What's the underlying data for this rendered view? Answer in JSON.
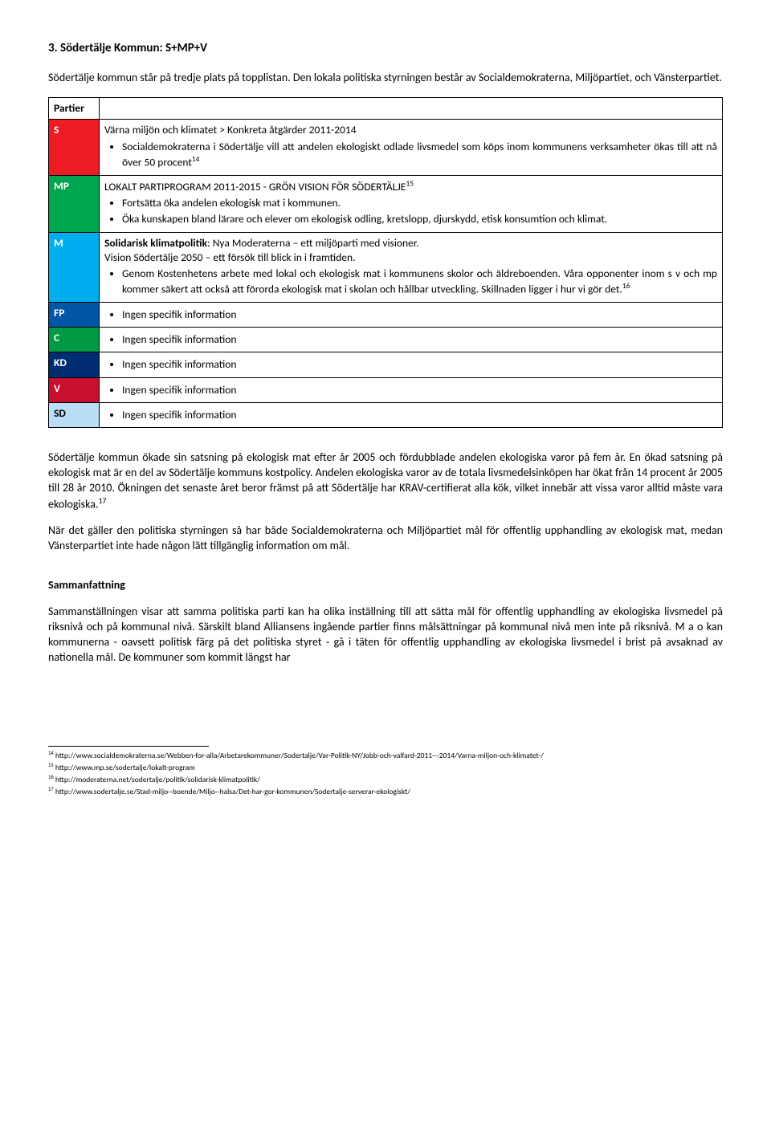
{
  "heading": "3.  Södertälje Kommun: S+MP+V",
  "intro": "Södertälje kommun står på tredje plats på topplistan. Den lokala politiska styrningen består av Socialdemokraterna, Miljöpartiet, och Vänsterpartiet.",
  "table_header": "Partier",
  "parties": {
    "s": {
      "label": "S",
      "bg": "#ed1b24",
      "title": "Värna miljön och klimatet > Konkreta åtgärder 2011-2014",
      "bullet": "Socialdemokraterna i Södertälje vill att andelen ekologiskt odlade livsmedel som köps inom kommunens verksamheter ökas till att nå över 50 procent",
      "fn": "14"
    },
    "mp": {
      "label": "MP",
      "bg": "#00a64f",
      "title": "LOKALT PARTIPROGRAM 2011-2015 - GRÖN VISION FÖR SÖDERTÄLJE",
      "fn": "15",
      "b1": "Fortsätta öka andelen ekologisk mat i kommunen.",
      "b2": "Öka kunskapen bland lärare och elever om ekologisk odling, kretslopp, djurskydd, etisk konsumtion och klimat."
    },
    "m": {
      "label": "M",
      "bg": "#00aeef",
      "line1_bold": "Solidarisk klimatpolitik",
      "line1_rest": ": Nya Moderaterna – ett miljöparti med visioner.",
      "line2": "Vision Södertälje 2050 – ett försök till blick in i framtiden.",
      "b1": "Genom Kostenhetens arbete med lokal och ekologisk mat i kommunens skolor och äldreboenden. Våra opponenter inom s v och mp kommer säkert att också att förorda ekologisk mat i skolan och hållbar utveckling. Skillnaden ligger i hur vi gör det.",
      "fn": "16"
    },
    "fp": {
      "label": "FP",
      "bg": "#0055a5",
      "text": "Ingen specifik information"
    },
    "c": {
      "label": "C",
      "bg": "#009a44",
      "text": "Ingen specifik information"
    },
    "kd": {
      "label": "KD",
      "bg": "#002d72",
      "text": "Ingen specifik information"
    },
    "v": {
      "label": "V",
      "bg": "#c8102e",
      "text": "Ingen specifik information"
    },
    "sd": {
      "label": "SD",
      "bg": "#bbdef7",
      "fg": "#000",
      "text": "Ingen specifik information"
    }
  },
  "para1": "Södertälje kommun ökade sin satsning på ekologisk mat efter år 2005 och fördubblade andelen ekologiska varor på fem år. En ökad satsning på ekologisk mat är en del av Södertälje kommuns kostpolicy. Andelen ekologiska varor av de totala livsmedelsinköpen har ökat från 14 procent år 2005 till 28 år 2010. Ökningen det senaste året beror främst på att Södertälje har KRAV-certifierat alla kök, vilket innebär att vissa varor alltid måste vara ekologiska.",
  "para1_fn": "17",
  "para2": "När det gäller den politiska styrningen så har både Socialdemokraterna och Miljöpartiet mål för offentlig upphandling av ekologisk mat, medan Vänsterpartiet inte hade någon lätt tillgänglig information om mål.",
  "summary_heading": "Sammanfattning",
  "summary_para": "Sammanställningen visar att samma politiska parti kan ha olika inställning till att sätta mål för offentlig upphandling av ekologiska livsmedel på riksnivå och på kommunal nivå. Särskilt bland Alliansens ingående partier finns målsättningar på kommunal nivå men inte på riksnivå. M a o kan kommunerna - oavsett politisk färg på det politiska styret - gå i täten för offentlig upphandling av ekologiska livsmedel i brist på avsaknad av nationella mål. De kommuner som kommit längst har",
  "footnotes": {
    "f14": "http://www.socialdemokraterna.se/Webben-for-alla/Arbetarekommuner/Sodertalje/Var-Politik-NY/Jobb-och-valfard-2011---2014/Varna-miljon-och-klimatet-/",
    "f15": "http://www.mp.se/sodertalje/lokalt-program",
    "f16": "http://moderaterna.net/sodertalje/politik/solidarisk-klimatpolitik/",
    "f17": "http://www.sodertalje.se/Stad-miljo--boende/Miljo--halsa/Det-har-gor-kommunen/Sodertalje-serverar-ekologiskt/"
  }
}
